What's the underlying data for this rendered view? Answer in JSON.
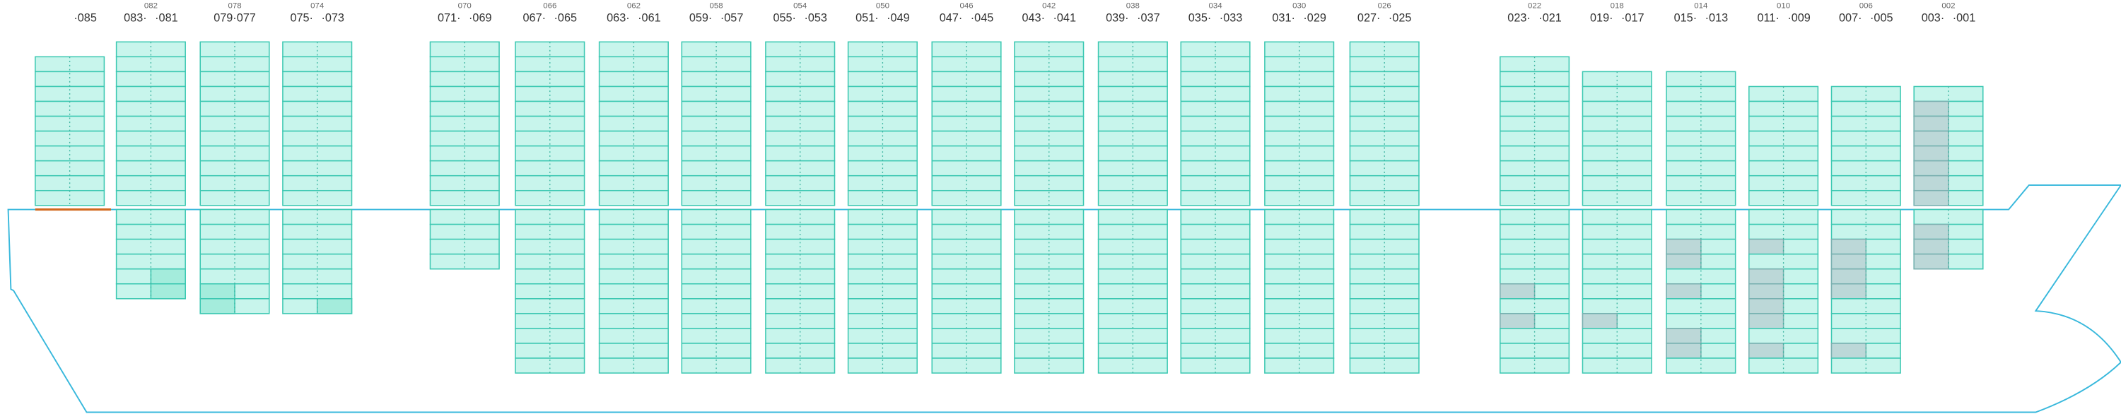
{
  "bays": [
    {
      "aft": "·085"
    },
    {
      "number": "082",
      "fore": "083·",
      "aft": "·081"
    },
    {
      "number": "078",
      "pair": "079·077"
    },
    {
      "number": "074",
      "fore": "075·",
      "aft": "·073"
    },
    {
      "number": "070",
      "fore": "071·",
      "aft": "·069"
    },
    {
      "number": "066",
      "fore": "067·",
      "aft": "·065"
    },
    {
      "number": "062",
      "fore": "063·",
      "aft": "·061"
    },
    {
      "number": "058",
      "fore": "059·",
      "aft": "·057"
    },
    {
      "number": "054",
      "fore": "055·",
      "aft": "·053"
    },
    {
      "number": "050",
      "fore": "051·",
      "aft": "·049"
    },
    {
      "number": "046",
      "fore": "047·",
      "aft": "·045"
    },
    {
      "number": "042",
      "fore": "043·",
      "aft": "·041"
    },
    {
      "number": "038",
      "fore": "039·",
      "aft": "·037"
    },
    {
      "number": "034",
      "fore": "035·",
      "aft": "·033"
    },
    {
      "number": "030",
      "fore": "031·",
      "aft": "·029"
    },
    {
      "number": "026",
      "fore": "027·",
      "aft": "·025"
    },
    {
      "number": "022",
      "fore": "023·",
      "aft": "·021"
    },
    {
      "number": "018",
      "fore": "019·",
      "aft": "·017"
    },
    {
      "number": "014",
      "fore": "015·",
      "aft": "·013"
    },
    {
      "number": "010",
      "fore": "011·",
      "aft": "·009"
    },
    {
      "number": "006",
      "fore": "007·",
      "aft": "·005"
    },
    {
      "number": "002",
      "fore": "003·",
      "aft": "·001"
    }
  ]
}
